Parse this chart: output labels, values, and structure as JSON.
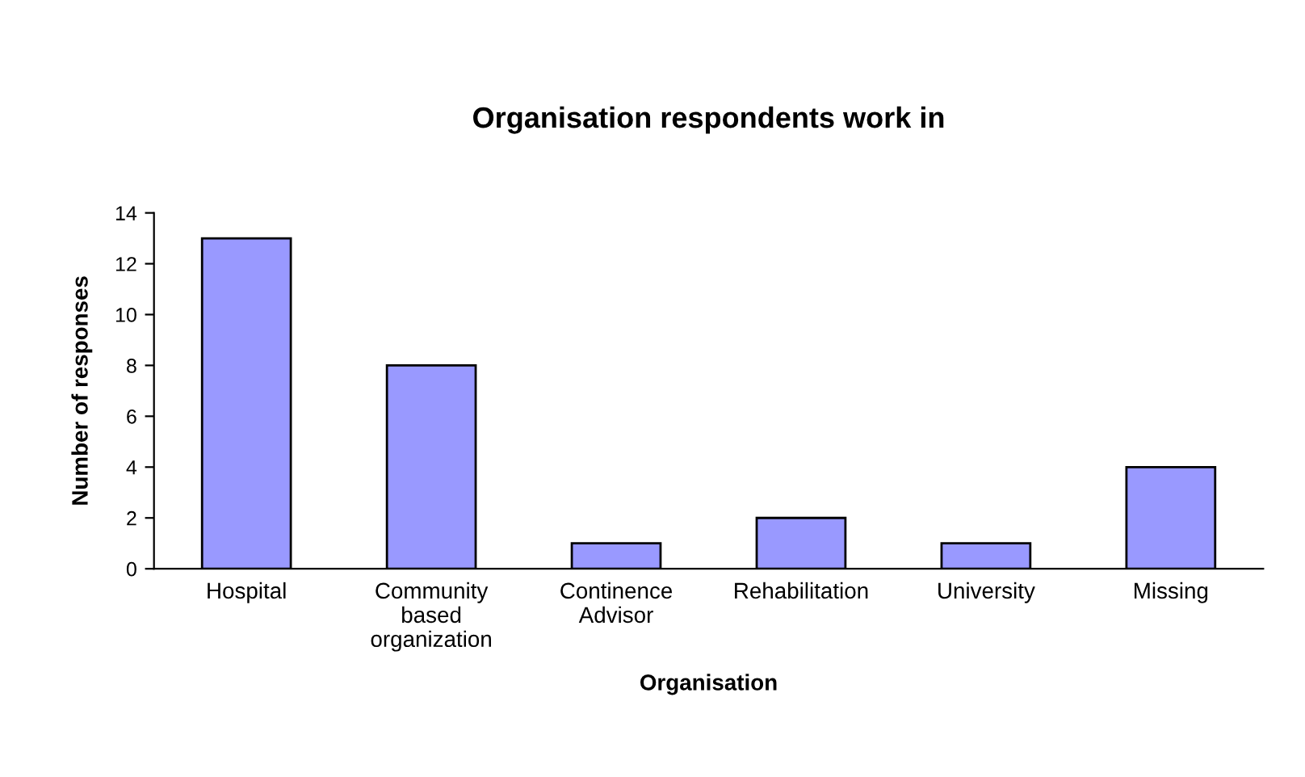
{
  "chart_data": {
    "type": "bar",
    "title": "Organisation respondents work in",
    "xlabel": "Organisation",
    "ylabel": "Number of responses",
    "categories": [
      "Hospital",
      "Community\nbased\norganization",
      "Continence\nAdvisor",
      "Rehabilitation",
      "University",
      "Missing"
    ],
    "values": [
      13,
      8,
      1,
      2,
      1,
      4
    ],
    "color": "#9999ff",
    "ylim": [
      0,
      14
    ],
    "yticks": [
      0,
      2,
      4,
      6,
      8,
      10,
      12,
      14
    ],
    "grid": false,
    "legend": false
  }
}
